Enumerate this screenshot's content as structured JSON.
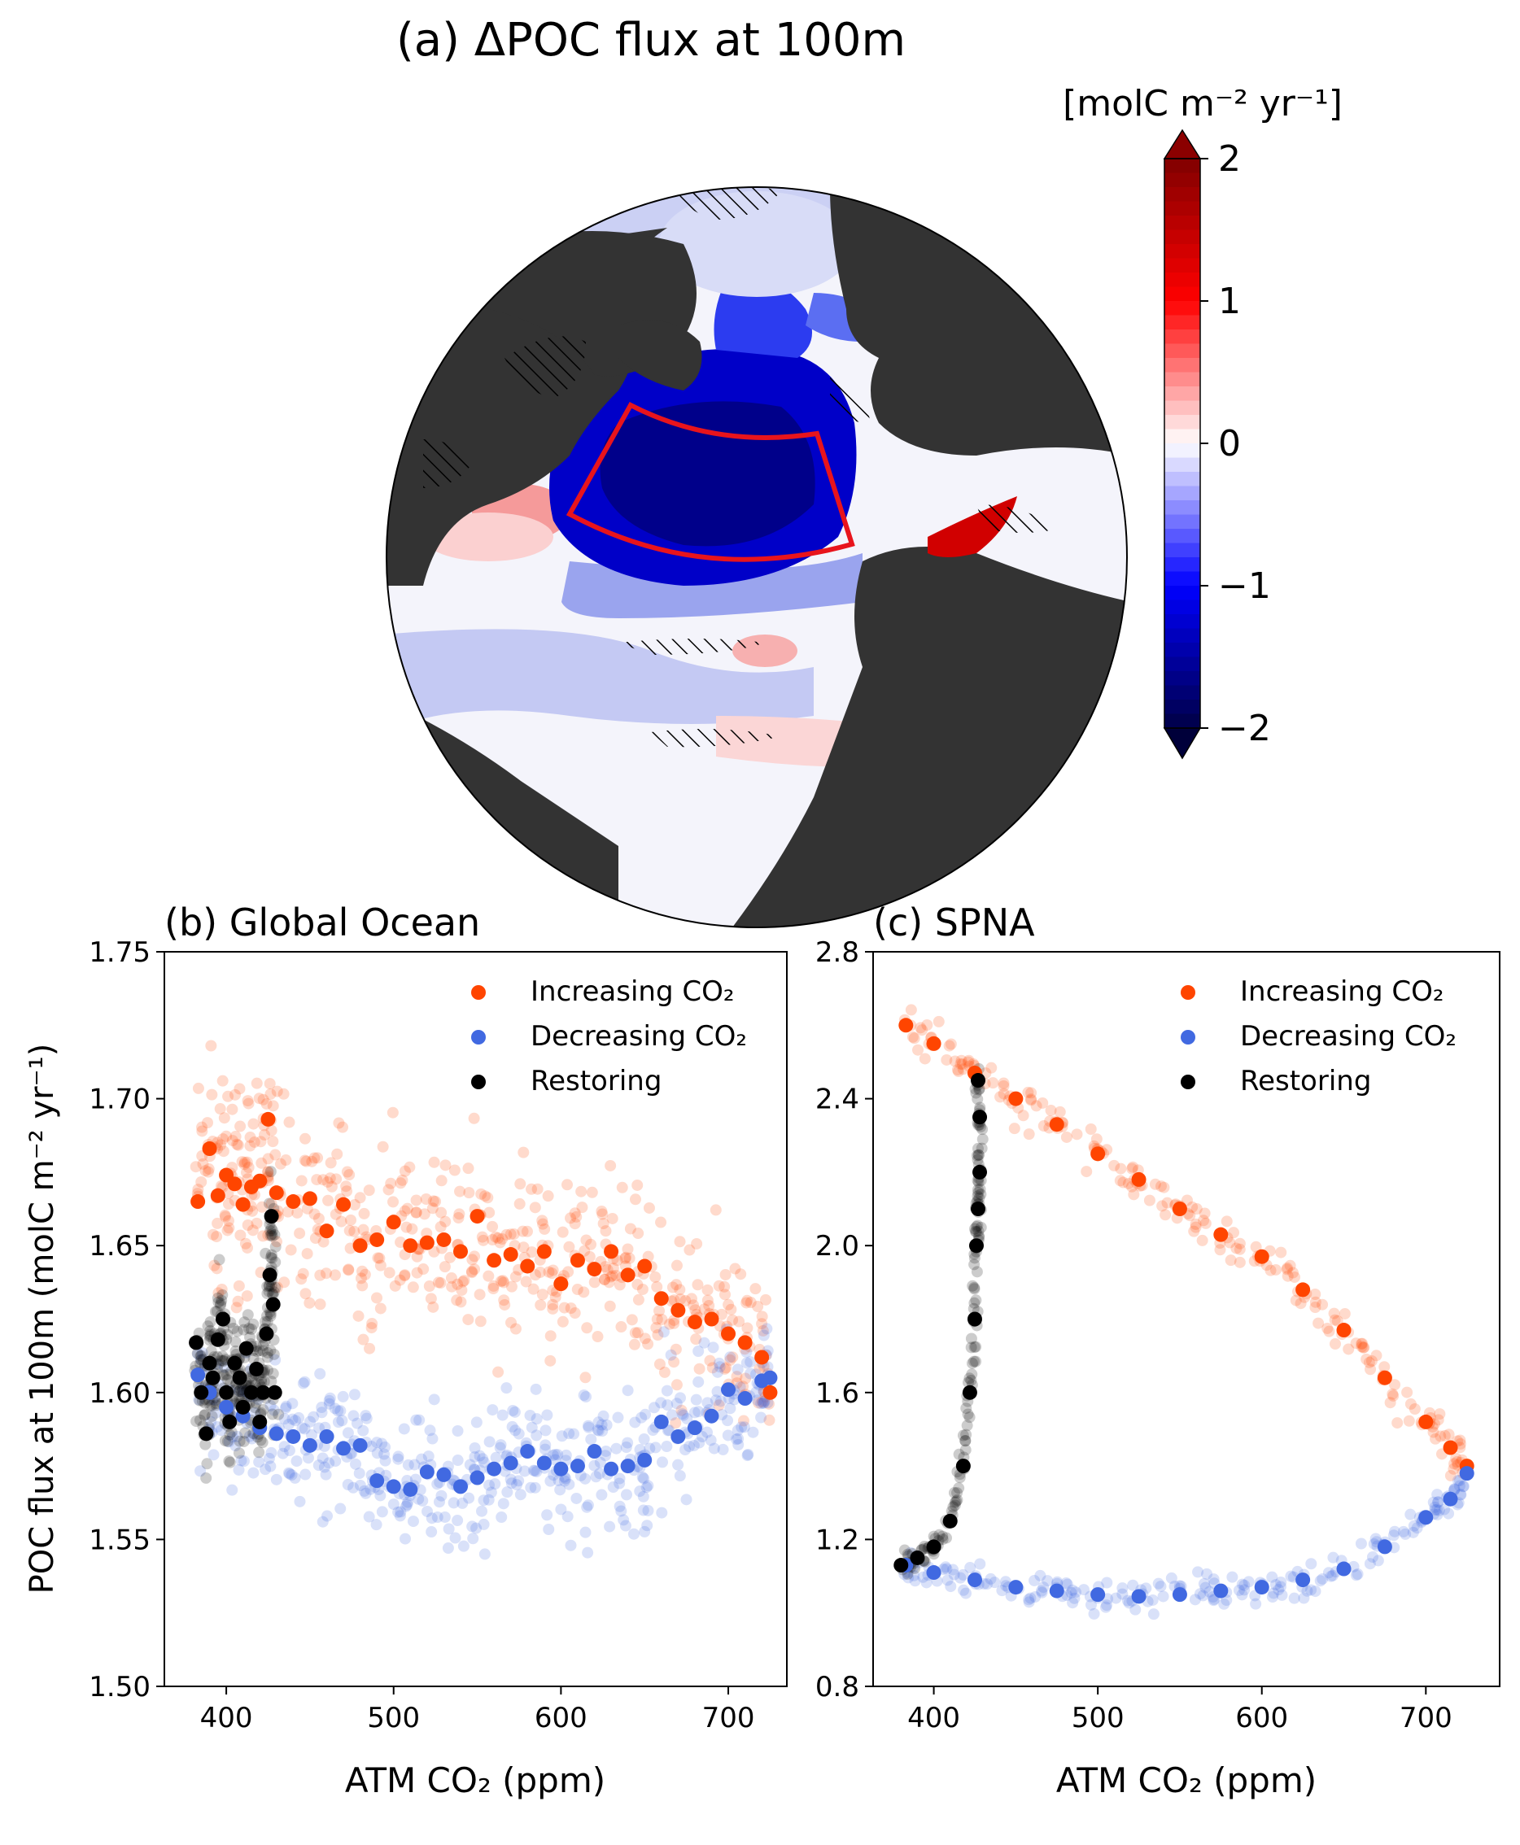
{
  "panel_a": {
    "title": "(a) ΔPOC flux at 100m",
    "colorbar_unit": "[molC m⁻² yr⁻¹]",
    "colorbar_ticks": [
      "2",
      "1",
      "0",
      "−1",
      "−2"
    ],
    "colors": {
      "land": "#333333",
      "ocean_neutral": "#f4f4fb",
      "region_box": "#e8141c"
    }
  },
  "panel_b": {
    "title": "(b) Global Ocean",
    "xlabel": "ATM CO₂ (ppm)",
    "ylabel": "POC flux at 100m (molC m⁻² yr⁻¹)",
    "xticks": [
      "400",
      "500",
      "600",
      "700"
    ],
    "yticks": [
      "1.50",
      "1.55",
      "1.60",
      "1.65",
      "1.70",
      "1.75"
    ]
  },
  "panel_c": {
    "title": "(c) SPNA",
    "xlabel": "ATM CO₂ (ppm)",
    "xticks": [
      "400",
      "500",
      "600",
      "700"
    ],
    "yticks": [
      "0.8",
      "1.2",
      "1.6",
      "2.0",
      "2.4",
      "2.8"
    ]
  },
  "legend": {
    "increasing": "Increasing CO₂",
    "decreasing": "Decreasing CO₂",
    "restoring": "Restoring"
  },
  "chart_data": [
    {
      "type": "scatter",
      "title": "(b) Global Ocean",
      "xlabel": "ATM CO₂ (ppm)",
      "ylabel": "POC flux at 100m (molC m⁻² yr⁻¹)",
      "xlim": [
        363,
        735
      ],
      "ylim": [
        1.5,
        1.75
      ],
      "legend_position": "top-right",
      "grid": false,
      "series": [
        {
          "name": "Increasing CO₂",
          "color": "#ff4500",
          "x": [
            383,
            390,
            395,
            400,
            405,
            410,
            415,
            420,
            425,
            430,
            440,
            450,
            460,
            470,
            480,
            490,
            500,
            510,
            520,
            530,
            540,
            550,
            560,
            570,
            580,
            590,
            600,
            610,
            620,
            630,
            640,
            650,
            660,
            670,
            680,
            690,
            700,
            710,
            720,
            725
          ],
          "y": [
            1.665,
            1.683,
            1.667,
            1.674,
            1.671,
            1.664,
            1.67,
            1.672,
            1.693,
            1.668,
            1.665,
            1.666,
            1.655,
            1.664,
            1.65,
            1.652,
            1.658,
            1.65,
            1.651,
            1.652,
            1.648,
            1.66,
            1.645,
            1.647,
            1.643,
            1.648,
            1.637,
            1.645,
            1.642,
            1.648,
            1.64,
            1.643,
            1.632,
            1.628,
            1.624,
            1.625,
            1.62,
            1.617,
            1.612,
            1.6
          ]
        },
        {
          "name": "Decreasing CO₂",
          "color": "#4169e1",
          "x": [
            725,
            720,
            710,
            700,
            690,
            680,
            670,
            660,
            650,
            640,
            630,
            620,
            610,
            600,
            590,
            580,
            570,
            560,
            550,
            540,
            530,
            520,
            510,
            500,
            490,
            480,
            470,
            460,
            450,
            440,
            430,
            420,
            410,
            400,
            390,
            383
          ],
          "y": [
            1.605,
            1.604,
            1.598,
            1.601,
            1.592,
            1.588,
            1.585,
            1.59,
            1.577,
            1.575,
            1.574,
            1.58,
            1.575,
            1.574,
            1.576,
            1.58,
            1.576,
            1.574,
            1.571,
            1.568,
            1.572,
            1.573,
            1.567,
            1.568,
            1.57,
            1.582,
            1.581,
            1.585,
            1.582,
            1.585,
            1.586,
            1.588,
            1.592,
            1.595,
            1.6,
            1.606
          ]
        },
        {
          "name": "Restoring",
          "color": "#000000",
          "x": [
            382,
            385,
            388,
            390,
            392,
            395,
            398,
            400,
            402,
            405,
            408,
            410,
            412,
            415,
            418,
            420,
            422,
            424,
            426,
            427,
            428,
            429
          ],
          "y": [
            1.617,
            1.6,
            1.586,
            1.61,
            1.605,
            1.618,
            1.625,
            1.6,
            1.59,
            1.61,
            1.605,
            1.595,
            1.615,
            1.6,
            1.608,
            1.59,
            1.6,
            1.62,
            1.64,
            1.66,
            1.63,
            1.6
          ]
        }
      ]
    },
    {
      "type": "scatter",
      "title": "(c) SPNA",
      "xlabel": "ATM CO₂ (ppm)",
      "ylabel": "",
      "xlim": [
        363,
        745
      ],
      "ylim": [
        0.8,
        2.8
      ],
      "legend_position": "top-right",
      "grid": false,
      "series": [
        {
          "name": "Increasing CO₂",
          "color": "#ff4500",
          "x": [
            383,
            400,
            425,
            450,
            475,
            500,
            525,
            550,
            575,
            600,
            625,
            650,
            675,
            700,
            715,
            725
          ],
          "y": [
            2.6,
            2.55,
            2.47,
            2.4,
            2.33,
            2.25,
            2.18,
            2.1,
            2.03,
            1.97,
            1.88,
            1.77,
            1.64,
            1.52,
            1.45,
            1.4
          ]
        },
        {
          "name": "Decreasing CO₂",
          "color": "#4169e1",
          "x": [
            725,
            715,
            700,
            675,
            650,
            625,
            600,
            575,
            550,
            525,
            500,
            475,
            450,
            425,
            400,
            383
          ],
          "y": [
            1.38,
            1.31,
            1.26,
            1.18,
            1.12,
            1.09,
            1.07,
            1.06,
            1.05,
            1.045,
            1.05,
            1.06,
            1.07,
            1.09,
            1.11,
            1.13
          ]
        },
        {
          "name": "Restoring",
          "color": "#000000",
          "x": [
            380,
            390,
            400,
            410,
            418,
            422,
            425,
            426,
            427,
            428,
            428,
            427
          ],
          "y": [
            1.13,
            1.15,
            1.18,
            1.25,
            1.4,
            1.6,
            1.8,
            2.0,
            2.1,
            2.2,
            2.35,
            2.45
          ]
        }
      ]
    }
  ]
}
